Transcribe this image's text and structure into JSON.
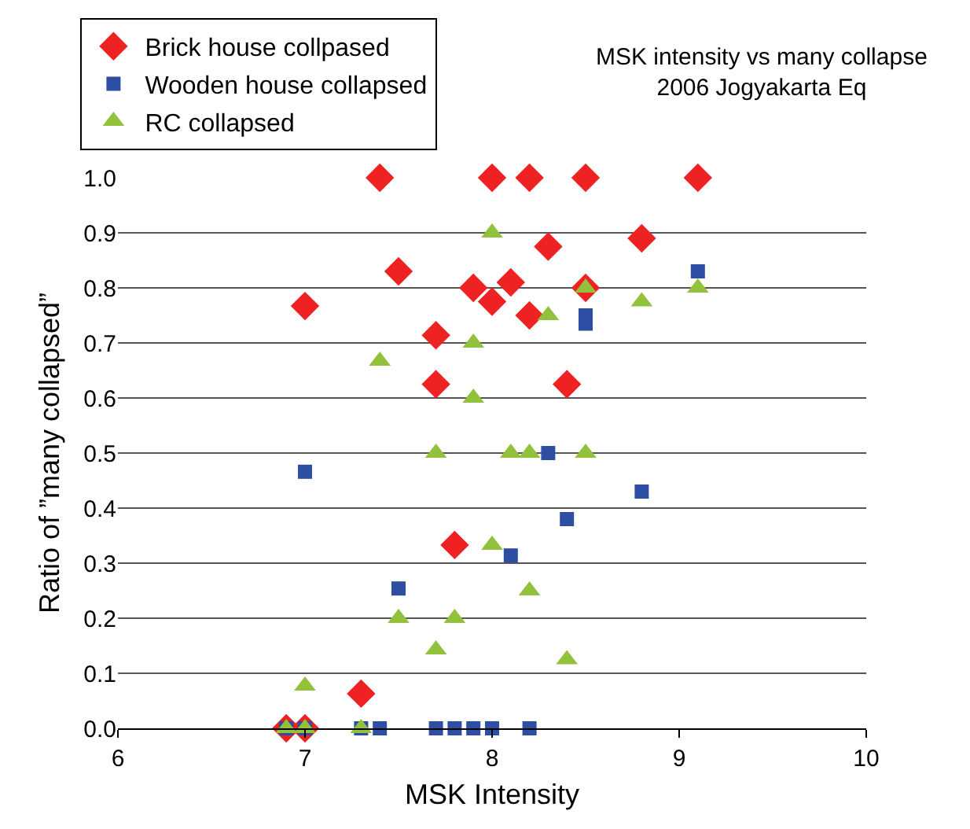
{
  "chart_data": {
    "type": "scatter",
    "title": "MSK intensity vs many collapse",
    "subtitle": "2006 Jogyakarta Eq",
    "xlabel": "MSK Intensity",
    "ylabel": "Ratio of ”many collapsed”",
    "xlim": [
      6,
      10
    ],
    "xticks": [
      6,
      7,
      8,
      9,
      10
    ],
    "ylim": [
      0,
      1
    ],
    "yticks": [
      {
        "value": 0,
        "label": "0.0"
      },
      0.1,
      0.2,
      0.3,
      0.4,
      0.5,
      0.6,
      0.7,
      0.8,
      0.9,
      {
        "value": 1,
        "label": "1.0"
      }
    ],
    "grid": "y",
    "legend": "top left",
    "series": [
      {
        "name": "Brick house collpased",
        "color": "#ee2222",
        "marker": "diamond",
        "x": [
          7.4,
          8.0,
          8.2,
          8.5,
          9.1,
          8.8,
          8.3,
          7.5,
          7.9,
          8.1,
          8.0,
          8.5,
          7.0,
          7.7,
          8.2,
          7.7,
          8.4,
          7.8,
          7.3,
          6.9,
          7.0
        ],
        "values": [
          1,
          1,
          1,
          1,
          1,
          0.89,
          0.875,
          0.83,
          0.8,
          0.81,
          0.775,
          0.8,
          0.767,
          0.714,
          0.75,
          0.625,
          0.625,
          0.333,
          0.063,
          0,
          0
        ]
      },
      {
        "name": "Wooden house collapsed",
        "color": "#2e4ea3",
        "marker": "square",
        "x": [
          7.0,
          7.5,
          8.3,
          9.1,
          8.8,
          8.4,
          8.1,
          8.5,
          8.5,
          6.9,
          7.0,
          7.3,
          7.4,
          7.7,
          7.8,
          7.9,
          8.0,
          8.2
        ],
        "values": [
          0.466,
          0.254,
          0.5,
          0.83,
          0.43,
          0.38,
          0.314,
          0.75,
          0.735,
          0,
          0,
          0,
          0,
          0,
          0,
          0,
          0,
          0
        ]
      },
      {
        "name": "RC collapsed",
        "color": "#92c13b",
        "marker": "triangle",
        "x": [
          8.0,
          8.3,
          8.5,
          8.8,
          9.1,
          7.4,
          7.9,
          7.9,
          7.7,
          8.1,
          8.2,
          8.5,
          8.0,
          8.2,
          7.5,
          7.8,
          7.7,
          8.4,
          7.0,
          6.9,
          7.0,
          7.3
        ],
        "values": [
          0.9,
          0.75,
          0.8,
          0.775,
          0.8,
          0.667,
          0.7,
          0.6,
          0.5,
          0.5,
          0.5,
          0.5,
          0.333,
          0.25,
          0.2,
          0.2,
          0.143,
          0.125,
          0.077,
          0,
          0,
          0
        ]
      }
    ]
  }
}
